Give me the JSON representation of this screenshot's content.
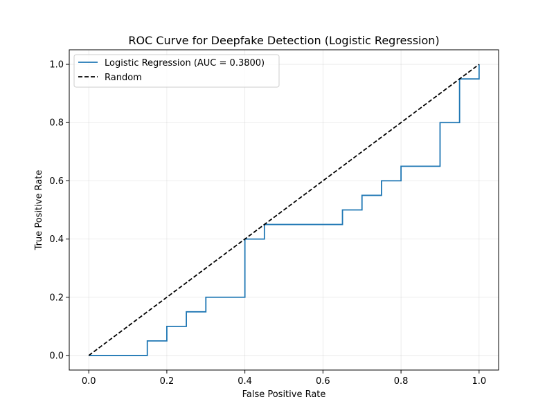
{
  "chart_data": {
    "type": "line",
    "title": "ROC Curve for Deepfake Detection (Logistic Regression)",
    "xlabel": "False Positive Rate",
    "ylabel": "True Positive Rate",
    "xlim": [
      -0.05,
      1.05
    ],
    "ylim": [
      -0.05,
      1.05
    ],
    "xticks": [
      "0.0",
      "0.2",
      "0.4",
      "0.6",
      "0.8",
      "1.0"
    ],
    "yticks": [
      "0.0",
      "0.2",
      "0.4",
      "0.6",
      "0.8",
      "1.0"
    ],
    "grid": true,
    "legend_position": "upper-left",
    "series": [
      {
        "name": "Logistic Regression (AUC = 0.3800)",
        "style": "step",
        "color": "#1f77b4",
        "dash": "solid",
        "x": [
          0.0,
          0.15,
          0.15,
          0.2,
          0.2,
          0.25,
          0.25,
          0.3,
          0.3,
          0.4,
          0.4,
          0.45,
          0.45,
          0.65,
          0.65,
          0.7,
          0.7,
          0.75,
          0.75,
          0.8,
          0.8,
          0.9,
          0.9,
          0.95,
          0.95,
          1.0,
          1.0
        ],
        "y": [
          0.0,
          0.0,
          0.05,
          0.05,
          0.1,
          0.1,
          0.15,
          0.15,
          0.2,
          0.2,
          0.4,
          0.4,
          0.45,
          0.45,
          0.5,
          0.5,
          0.55,
          0.55,
          0.6,
          0.6,
          0.65,
          0.65,
          0.8,
          0.8,
          0.95,
          0.95,
          1.0
        ]
      },
      {
        "name": "Random",
        "style": "line",
        "color": "#000000",
        "dash": "dashed",
        "x": [
          0.0,
          1.0
        ],
        "y": [
          0.0,
          1.0
        ]
      }
    ]
  }
}
